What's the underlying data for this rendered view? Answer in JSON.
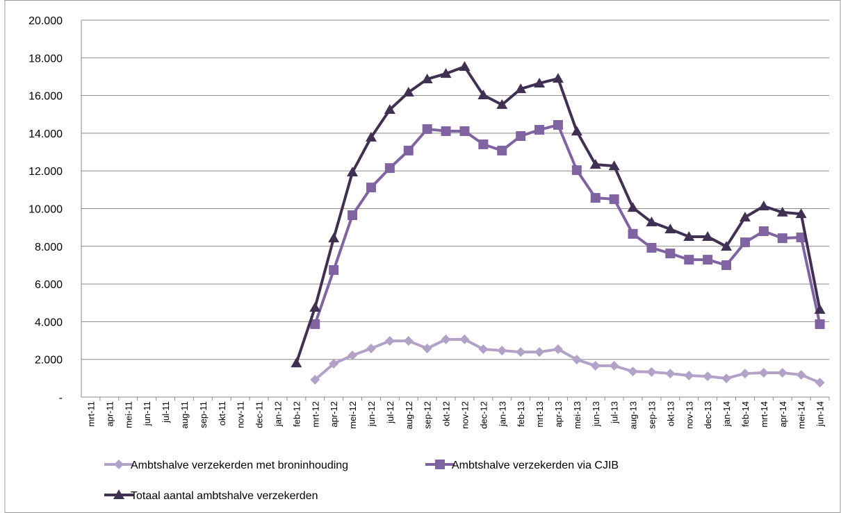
{
  "chart_data": {
    "type": "line",
    "categories": [
      "mrt-11",
      "apr-11",
      "mei-11",
      "jun-11",
      "jul-11",
      "aug-11",
      "sep-11",
      "okt-11",
      "nov-11",
      "dec-11",
      "jan-12",
      "feb-12",
      "mrt-12",
      "apr-12",
      "mei-12",
      "jun-12",
      "jul-12",
      "aug-12",
      "sep-12",
      "okt-12",
      "nov-12",
      "dec-12",
      "jan-13",
      "feb-13",
      "mrt-13",
      "apr-13",
      "mei-13",
      "jun-13",
      "jul-13",
      "aug-13",
      "sep-13",
      "okt-13",
      "nov-13",
      "dec-13",
      "jan-14",
      "feb-14",
      "mrt-14",
      "apr-14",
      "mei-14",
      "jun-14"
    ],
    "series": [
      {
        "name": "Ambtshalve verzekerden met broninhouding",
        "color": "#b3a2c7",
        "marker": "diamond",
        "values": [
          null,
          null,
          null,
          null,
          null,
          null,
          null,
          null,
          null,
          null,
          null,
          null,
          920,
          1770,
          2210,
          2580,
          2980,
          2980,
          2580,
          3060,
          3060,
          2540,
          2470,
          2390,
          2390,
          2540,
          1990,
          1660,
          1660,
          1360,
          1330,
          1250,
          1140,
          1100,
          990,
          1250,
          1290,
          1290,
          1180,
          770
        ]
      },
      {
        "name": "Ambtshalve verzekerden via CJIB",
        "color": "#8064a2",
        "marker": "square",
        "values": [
          null,
          null,
          null,
          null,
          null,
          null,
          null,
          null,
          null,
          null,
          null,
          null,
          3870,
          6740,
          9650,
          11120,
          12150,
          13080,
          14220,
          14110,
          14110,
          13410,
          13080,
          13850,
          14180,
          14440,
          12040,
          10570,
          10500,
          8660,
          7920,
          7620,
          7290,
          7290,
          7000,
          8210,
          8800,
          8430,
          8470,
          3870
        ]
      },
      {
        "name": "Totaal aantal ambtshalve verzekerden",
        "color": "#403152",
        "marker": "triangle",
        "values": [
          null,
          null,
          null,
          null,
          null,
          null,
          null,
          null,
          null,
          null,
          null,
          1800,
          4750,
          8430,
          11930,
          13780,
          15250,
          16170,
          16870,
          17160,
          17530,
          16020,
          15510,
          16350,
          16650,
          16900,
          14100,
          12340,
          12260,
          10050,
          9280,
          8910,
          8510,
          8510,
          7990,
          9540,
          10130,
          9800,
          9720,
          4640
        ]
      }
    ],
    "ylim": [
      0,
      20000
    ],
    "yticks": [
      {
        "value": 0,
        "label": "-"
      },
      {
        "value": 2000,
        "label": "2.000"
      },
      {
        "value": 4000,
        "label": "4.000"
      },
      {
        "value": 6000,
        "label": "6.000"
      },
      {
        "value": 8000,
        "label": "8.000"
      },
      {
        "value": 10000,
        "label": "10.000"
      },
      {
        "value": 12000,
        "label": "12.000"
      },
      {
        "value": 14000,
        "label": "14.000"
      },
      {
        "value": 16000,
        "label": "16.000"
      },
      {
        "value": 18000,
        "label": "18.000"
      },
      {
        "value": 20000,
        "label": "20.000"
      }
    ],
    "grid": true,
    "legend": "bottom"
  }
}
